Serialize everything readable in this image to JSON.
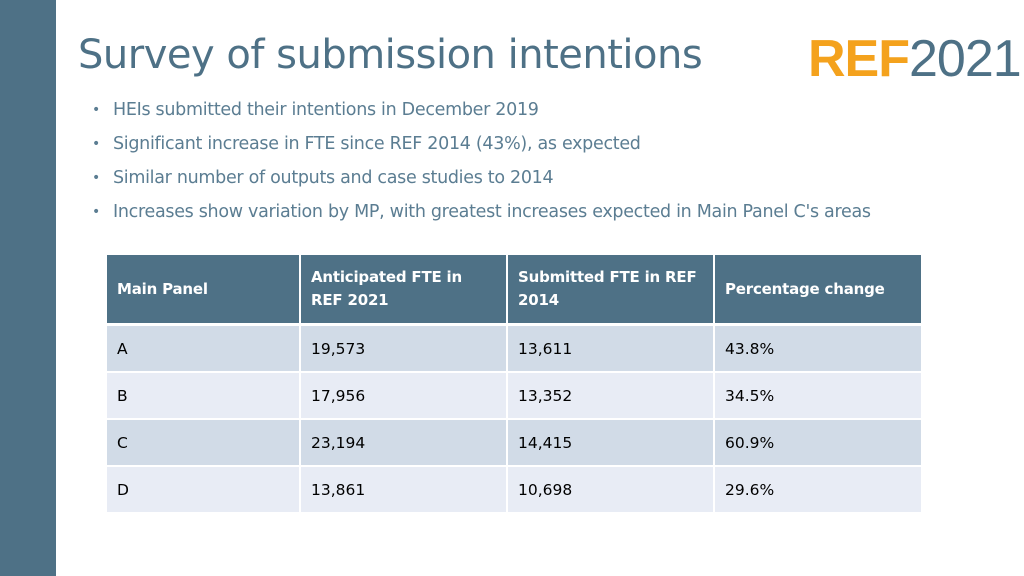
{
  "slide": {
    "title": "Survey of submission intentions",
    "logo": {
      "ref_text": "REF",
      "year_text": "2021",
      "colors": {
        "ref": "#f4a21d",
        "year": "#4e7186"
      }
    },
    "bullet_icon": "bullet-dot-icon",
    "bullets": [
      "HEIs submitted their intentions in December 2019",
      "Significant increase in FTE since REF 2014 (43%), as expected",
      "Similar number of outputs and case studies to 2014",
      "Increases show variation by MP, with greatest increases expected in Main Panel C's areas"
    ],
    "table": {
      "headers": [
        "Main Panel",
        "Anticipated FTE in REF 2021",
        "Submitted FTE in REF 2014",
        "Percentage change"
      ],
      "rows": [
        [
          "A",
          "19,573",
          "13,611",
          "43.8%"
        ],
        [
          "B",
          "17,956",
          "13,352",
          "34.5%"
        ],
        [
          "C",
          "23,194",
          "14,415",
          "60.9%"
        ],
        [
          "D",
          "13,861",
          "10,698",
          "29.6%"
        ]
      ]
    },
    "colors": {
      "accent": "#4e7186",
      "header_bg": "#4e7186",
      "row_odd": "#d1dbe7",
      "row_even": "#e8ecf5"
    }
  }
}
